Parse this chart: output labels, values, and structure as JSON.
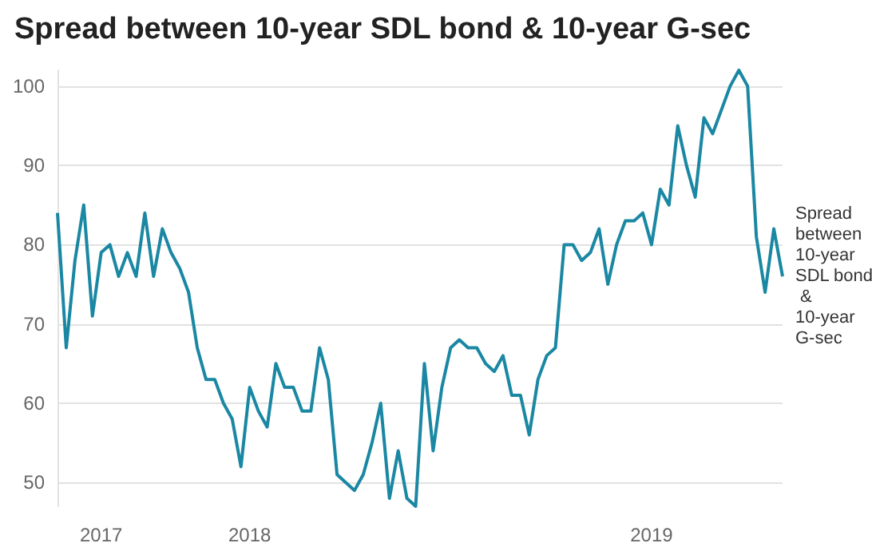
{
  "chart_data": {
    "type": "line",
    "title": "Spread between 10-year SDL bond & 10-year G-sec",
    "categories": [
      null,
      null,
      null,
      null,
      null,
      "2017",
      null,
      null,
      null,
      null,
      null,
      null,
      null,
      null,
      null,
      null,
      null,
      null,
      null,
      null,
      null,
      null,
      "2018",
      null,
      null,
      null,
      null,
      null,
      null,
      null,
      null,
      null,
      null,
      null,
      null,
      null,
      null,
      null,
      null,
      null,
      null,
      null,
      null,
      null,
      null,
      null,
      null,
      null,
      null,
      null,
      null,
      null,
      null,
      null,
      null,
      null,
      null,
      null,
      null,
      null,
      null,
      null,
      null,
      null,
      null,
      null,
      null,
      null,
      "2019",
      null,
      null,
      null,
      null,
      null,
      null,
      null,
      null,
      null,
      null,
      null,
      null,
      null,
      null,
      null
    ],
    "series": [
      {
        "name": "Spread between 10-year SDL bond & 10-year G-sec",
        "color": "#1a87a3",
        "values": [
          84,
          67,
          78,
          85,
          71,
          79,
          80,
          76,
          79,
          76,
          84,
          76,
          82,
          79,
          77,
          74,
          67,
          63,
          63,
          60,
          58,
          52,
          62,
          59,
          57,
          65,
          62,
          62,
          59,
          59,
          67,
          63,
          51,
          50,
          49,
          51,
          55,
          60,
          48,
          54,
          48,
          47,
          65,
          54,
          62,
          67,
          68,
          67,
          67,
          65,
          64,
          66,
          61,
          61,
          56,
          63,
          66,
          67,
          80,
          80,
          78,
          79,
          82,
          75,
          80,
          83,
          83,
          84,
          80,
          87,
          85,
          95,
          90,
          86,
          96,
          94,
          97,
          100,
          102,
          100,
          81,
          74,
          82,
          76
        ]
      }
    ],
    "ylim": [
      47,
      102
    ],
    "yticks": [
      50,
      60,
      70,
      80,
      90,
      100
    ],
    "grid": "y",
    "legend": false,
    "marker": "none",
    "line_style": "solid"
  }
}
